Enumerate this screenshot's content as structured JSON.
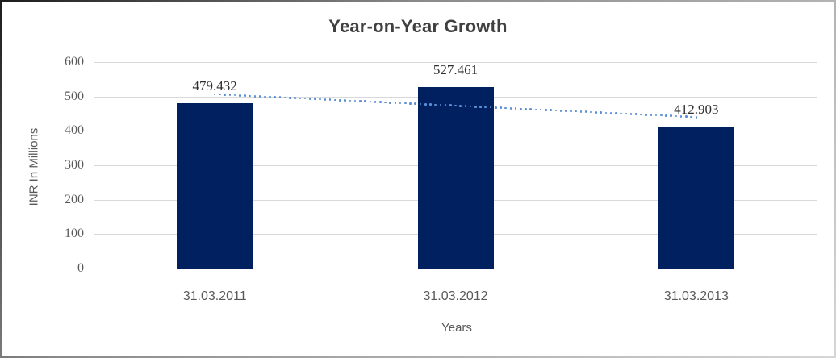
{
  "chart_data": {
    "type": "bar",
    "title": "Year-on-Year Growth",
    "xlabel": "Years",
    "ylabel": "INR In Millions",
    "categories": [
      "31.03.2011",
      "31.03.2012",
      "31.03.2013"
    ],
    "values": [
      479.432,
      527.461,
      412.903
    ],
    "data_labels": [
      "479.432",
      "527.461",
      "412.903"
    ],
    "ylim": [
      0,
      600
    ],
    "yticks": [
      0,
      100,
      200,
      300,
      400,
      500,
      600
    ],
    "grid": true,
    "legend": "none",
    "bar_color": "#002060",
    "gridline_color": "#d9d9d9",
    "trendline": {
      "type": "linear",
      "style": "dotted",
      "color": "#5b8fd6",
      "start_value": 506.53,
      "end_value": 440.0
    }
  },
  "text_colors": {
    "title": "#404040",
    "axis_text": "#595959",
    "data_label_text": "#303030"
  }
}
